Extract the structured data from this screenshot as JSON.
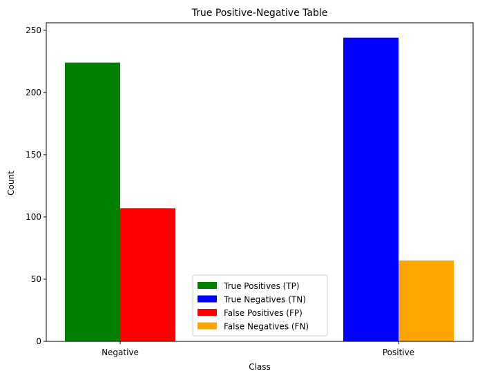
{
  "chart_data": {
    "type": "bar",
    "title": "True Positive-Negative Table",
    "xlabel": "Class",
    "ylabel": "Count",
    "categories": [
      "Negative",
      "Positive"
    ],
    "ylim": [
      0,
      256
    ],
    "yticks": [
      0,
      50,
      100,
      150,
      200,
      250
    ],
    "grid": false,
    "legend_position": "lower-center",
    "series": [
      {
        "name": "True Positives (TP)",
        "color": "#008000",
        "values": [
          224,
          null
        ]
      },
      {
        "name": "True Negatives (TN)",
        "color": "#0000ff",
        "values": [
          null,
          244
        ]
      },
      {
        "name": "False Positives (FP)",
        "color": "#ff0000",
        "values": [
          107,
          null
        ]
      },
      {
        "name": "False Negatives (FN)",
        "color": "#ffa500",
        "values": [
          null,
          65
        ]
      }
    ]
  }
}
